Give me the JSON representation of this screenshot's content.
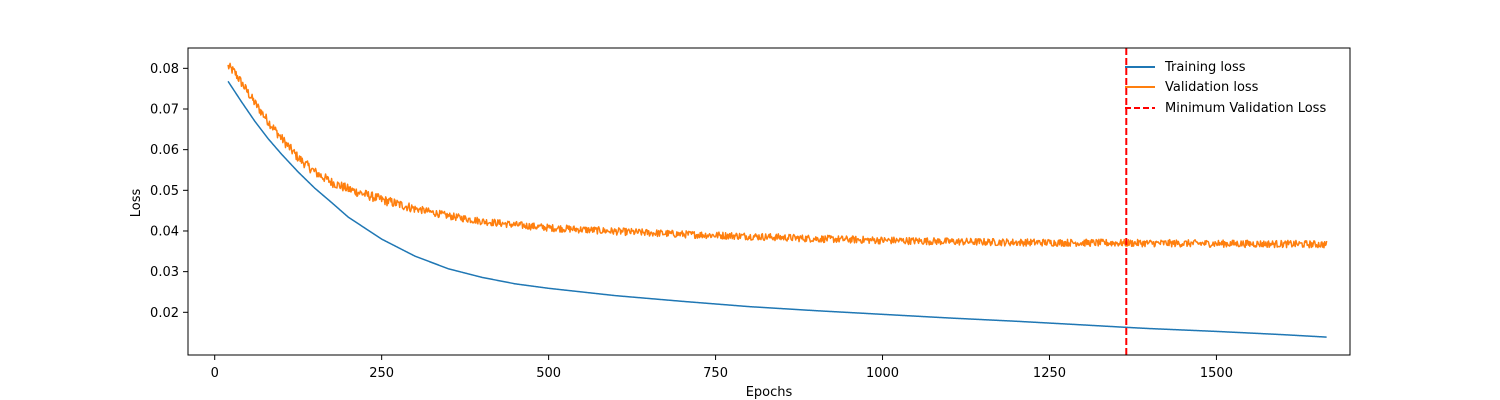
{
  "chart_data": {
    "type": "line",
    "title": "",
    "xlabel": "Epochs",
    "ylabel": "Loss",
    "xlim": [
      -40,
      1700
    ],
    "ylim": [
      0.0095,
      0.085
    ],
    "x_ticks": [
      0,
      250,
      500,
      750,
      1000,
      1250,
      1500
    ],
    "y_ticks": [
      0.02,
      0.03,
      0.04,
      0.05,
      0.06,
      0.07,
      0.08
    ],
    "grid": false,
    "legend_position": "top-right",
    "series": [
      {
        "name": "Training loss",
        "color": "#1f77b4",
        "style": "solid",
        "x": [
          20,
          40,
          60,
          80,
          100,
          125,
          150,
          175,
          200,
          250,
          300,
          350,
          400,
          450,
          500,
          600,
          700,
          800,
          900,
          1000,
          1100,
          1200,
          1300,
          1365,
          1400,
          1500,
          1600,
          1665
        ],
        "y": [
          0.0768,
          0.0718,
          0.067,
          0.0627,
          0.0589,
          0.0545,
          0.0505,
          0.047,
          0.0434,
          0.038,
          0.0338,
          0.0307,
          0.0286,
          0.027,
          0.0259,
          0.0241,
          0.0227,
          0.0214,
          0.0204,
          0.0195,
          0.0186,
          0.0178,
          0.0169,
          0.0163,
          0.016,
          0.0153,
          0.0145,
          0.0139
        ]
      },
      {
        "name": "Validation loss",
        "color": "#ff7f0e",
        "style": "solid",
        "noise_amplitude": 0.0009,
        "x": [
          20,
          30,
          40,
          60,
          80,
          100,
          125,
          150,
          175,
          200,
          225,
          250,
          300,
          350,
          400,
          450,
          500,
          600,
          700,
          800,
          900,
          1000,
          1100,
          1200,
          1300,
          1400,
          1500,
          1600,
          1665
        ],
        "y": [
          0.0805,
          0.079,
          0.0765,
          0.0715,
          0.067,
          0.0628,
          0.058,
          0.0545,
          0.052,
          0.0503,
          0.049,
          0.0477,
          0.0455,
          0.0437,
          0.0424,
          0.0415,
          0.0408,
          0.0399,
          0.0392,
          0.0387,
          0.0381,
          0.0377,
          0.0374,
          0.0372,
          0.0371,
          0.037,
          0.0369,
          0.0368,
          0.0367
        ]
      }
    ],
    "vlines": [
      {
        "name": "Minimum Validation Loss",
        "x": 1365,
        "color": "#ff0000",
        "style": "dashed"
      }
    ]
  }
}
